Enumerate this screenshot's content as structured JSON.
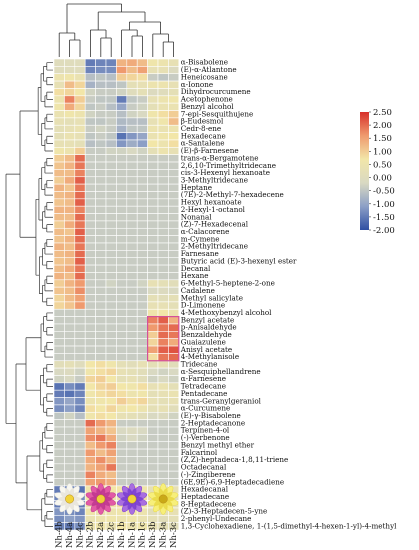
{
  "chart_data": {
    "type": "heatmap",
    "title": "",
    "columns": [
      "Nh-4b",
      "Nh-4a",
      "Nh-4c",
      "Nh-2b",
      "Nh-2a",
      "Nh-2c",
      "Nh-1b",
      "Nh-1a",
      "Nh-1c",
      "Nh-3b",
      "Nh-3a",
      "Nh-3c"
    ],
    "rows": [
      "α-Bisabolene",
      "(E)-α-Atlantone",
      "Heneicosane",
      "α-Ionone",
      "Dihydrocurcumene",
      "Acetophenone",
      "Benzyl alcohol",
      "7-epi-Sesquithujene",
      "β-Eudesmol",
      "Cedr-8-ene",
      "Hexadecane",
      "α-Santalene",
      "(E)-β-Farnesene",
      "trans-α-Bergamotene",
      "2,6,10-Trimethyltridecane",
      "cis-3-Hexenyl hexanoate",
      "3-Methyltridecane",
      "Heptane",
      "(7E)-2-Methyl-7-hexadecene",
      "Hexyl hexanoate",
      "2-Hexyl-1-octanol",
      "Nonanal",
      "(Z)-7-Hexadecenal",
      "α-Calacorene",
      "m-Cymene",
      "2-Methyltridecane",
      "Farnesane",
      "Butyric acid (E)-3-hexenyl ester",
      "Decanal",
      "Hexane",
      "6-Methyl-5-heptene-2-one",
      "Cadalene",
      "Methyl salicylate",
      "D-Limonene",
      "4-Methoxybenzyl alcohol",
      "Benzyl acetate",
      "p-Anisaldehyde",
      "Benzaldehyde",
      "Guaiazulene",
      "Anisyl acetate",
      "4-Methylanisole",
      "Tridecane",
      "α-Sesquiphellandrene",
      "α-Farnesene",
      "Tetradecane",
      "Pentadecane",
      "trans-Geranylgeraniol",
      "α-Curcumene",
      "(E)-γ-Bisabolene",
      "2-Heptadecanone",
      "Terpinen-4-ol",
      "(-)-Verbenone",
      "Benzyl methyl ether",
      "Falcarinol",
      "(Z,Z)-heptadeca-1,8,11-triene",
      "Octadecanal",
      "(-)-Zingiberene",
      "(6E,9E)-6,9-Heptadecadiene",
      "Hexadecanal",
      "Heptadecane",
      "8-Heptadecene",
      "(Z)-3-Heptadecen-5-yne",
      "2-phenyl-Undecane",
      "1,3-Cyclohexadiene, 1-(1,5-dimethyl-4-hexen-1-yl)-4-methyl"
    ],
    "values": [
      [
        0.0,
        0.0,
        0.0,
        -1.5,
        -1.4,
        -1.4,
        1.3,
        1.4,
        1.2,
        0.6,
        0.5,
        0.3
      ],
      [
        0.0,
        0.0,
        0.0,
        -1.4,
        -1.3,
        -1.3,
        1.6,
        1.2,
        1.5,
        0.3,
        0.3,
        -0.1
      ],
      [
        0.5,
        0.6,
        0.4,
        -0.6,
        -0.5,
        -0.6,
        1.0,
        0.9,
        0.8,
        -0.4,
        -0.5,
        -0.4
      ],
      [
        0.3,
        1.2,
        0.9,
        -0.8,
        -0.6,
        -0.6,
        -0.5,
        0.2,
        0.3,
        0.5,
        0.5,
        0.3
      ],
      [
        0.8,
        0.9,
        0.7,
        -0.3,
        -0.4,
        -0.4,
        -0.3,
        0.0,
        0.2,
        -0.1,
        0.0,
        0.2
      ],
      [
        0.5,
        1.8,
        1.0,
        -0.4,
        -0.5,
        -0.5,
        -1.5,
        -0.5,
        -0.4,
        0.3,
        0.5,
        0.6
      ],
      [
        0.6,
        1.4,
        0.9,
        -0.5,
        -0.4,
        -0.6,
        -1.0,
        -0.4,
        -0.3,
        0.2,
        0.4,
        0.4
      ],
      [
        0.4,
        0.6,
        0.5,
        -0.3,
        -0.4,
        -0.4,
        -0.6,
        -0.3,
        -0.2,
        0.6,
        0.8,
        1.0
      ],
      [
        0.3,
        0.2,
        0.3,
        -0.5,
        -0.5,
        -0.4,
        -0.7,
        -0.6,
        -0.6,
        0.3,
        0.6,
        1.2
      ],
      [
        0.2,
        0.3,
        0.4,
        -0.4,
        -0.3,
        -0.4,
        -0.8,
        -0.5,
        -0.5,
        0.5,
        0.4,
        0.5
      ],
      [
        0.2,
        0.4,
        0.3,
        -0.5,
        -0.4,
        -0.5,
        -1.6,
        -1.2,
        -1.0,
        0.4,
        0.6,
        0.7
      ],
      [
        0.3,
        0.3,
        0.2,
        -0.6,
        -0.5,
        -0.6,
        -1.2,
        -0.9,
        -1.1,
        0.7,
        0.5,
        0.8
      ],
      [
        0.6,
        0.5,
        1.0,
        -0.4,
        -0.4,
        -0.3,
        -0.3,
        -0.2,
        -0.3,
        0.2,
        0.5,
        0.3
      ],
      [
        1.0,
        1.2,
        2.0,
        -0.4,
        -0.4,
        -0.4,
        -0.4,
        -0.4,
        -0.4,
        -0.4,
        -0.4,
        -0.4
      ],
      [
        1.1,
        1.3,
        1.9,
        -0.4,
        -0.4,
        -0.4,
        -0.4,
        -0.4,
        -0.4,
        -0.4,
        -0.4,
        -0.4
      ],
      [
        1.2,
        1.2,
        1.8,
        -0.4,
        -0.4,
        -0.4,
        -0.4,
        -0.4,
        -0.4,
        -0.4,
        -0.4,
        -0.4
      ],
      [
        1.0,
        1.4,
        2.1,
        -0.4,
        -0.4,
        -0.4,
        -0.4,
        -0.4,
        -0.4,
        -0.4,
        -0.4,
        -0.4
      ],
      [
        1.3,
        1.1,
        1.9,
        -0.4,
        -0.4,
        -0.4,
        -0.4,
        -0.4,
        -0.4,
        -0.4,
        -0.4,
        -0.4
      ],
      [
        1.2,
        1.3,
        2.0,
        -0.4,
        -0.4,
        -0.4,
        -0.4,
        -0.4,
        -0.4,
        -0.4,
        -0.4,
        -0.4
      ],
      [
        1.1,
        1.2,
        2.1,
        -0.4,
        -0.4,
        -0.4,
        -0.4,
        -0.4,
        -0.4,
        -0.4,
        -0.4,
        -0.4
      ],
      [
        1.3,
        1.3,
        1.8,
        -0.4,
        -0.4,
        -0.4,
        -0.4,
        -0.4,
        -0.4,
        -0.4,
        -0.4,
        -0.4
      ],
      [
        1.2,
        1.2,
        2.0,
        -0.4,
        -0.4,
        -0.4,
        -0.4,
        -0.4,
        -0.4,
        -0.4,
        -0.4,
        -0.4
      ],
      [
        1.0,
        1.4,
        1.9,
        -0.4,
        -0.4,
        -0.4,
        -0.4,
        -0.4,
        -0.4,
        -0.4,
        -0.4,
        -0.4
      ],
      [
        1.2,
        1.1,
        2.1,
        -0.4,
        -0.4,
        -0.4,
        -0.4,
        -0.4,
        -0.4,
        -0.4,
        -0.4,
        -0.4
      ],
      [
        1.1,
        1.3,
        2.0,
        -0.4,
        -0.4,
        -0.4,
        -0.4,
        -0.4,
        -0.4,
        -0.4,
        -0.4,
        -0.4
      ],
      [
        1.3,
        1.2,
        1.9,
        -0.4,
        -0.4,
        -0.4,
        -0.4,
        -0.4,
        -0.4,
        -0.4,
        -0.4,
        -0.4
      ],
      [
        1.2,
        1.3,
        2.0,
        -0.4,
        -0.4,
        -0.4,
        -0.4,
        -0.4,
        -0.4,
        -0.4,
        -0.4,
        -0.4
      ],
      [
        1.1,
        1.2,
        2.1,
        -0.4,
        -0.4,
        -0.4,
        -0.4,
        -0.4,
        -0.4,
        -0.4,
        -0.4,
        -0.4
      ],
      [
        1.2,
        1.4,
        1.9,
        -0.4,
        -0.4,
        -0.4,
        -0.4,
        -0.4,
        -0.4,
        -0.4,
        -0.4,
        -0.4
      ],
      [
        1.3,
        1.2,
        2.0,
        -0.4,
        -0.4,
        -0.4,
        -0.4,
        -0.4,
        -0.4,
        -0.4,
        -0.4,
        -0.4
      ],
      [
        1.0,
        1.3,
        1.6,
        -0.4,
        -0.4,
        -0.3,
        -0.4,
        -0.4,
        -0.3,
        0.3,
        0.2,
        0.1
      ],
      [
        1.1,
        1.2,
        1.7,
        -0.4,
        -0.4,
        -0.4,
        -0.4,
        -0.4,
        -0.4,
        -0.2,
        -0.1,
        -0.2
      ],
      [
        0.9,
        1.2,
        1.5,
        -0.4,
        -0.4,
        -0.4,
        -0.4,
        -0.4,
        -0.4,
        0.2,
        0.1,
        0.2
      ],
      [
        0.9,
        1.1,
        1.6,
        -0.4,
        -0.4,
        -0.4,
        -0.4,
        -0.4,
        -0.4,
        0.3,
        0.3,
        0.2
      ],
      [
        -0.4,
        -0.4,
        -0.4,
        -0.4,
        -0.4,
        -0.4,
        -0.4,
        -0.4,
        -0.4,
        0.6,
        0.7,
        0.5
      ],
      [
        -0.4,
        -0.4,
        -0.4,
        -0.4,
        -0.4,
        -0.4,
        -0.4,
        -0.4,
        -0.4,
        1.8,
        2.1,
        1.3
      ],
      [
        -0.4,
        -0.4,
        -0.4,
        -0.4,
        -0.4,
        -0.4,
        -0.4,
        -0.4,
        -0.4,
        1.6,
        1.9,
        2.0
      ],
      [
        -0.4,
        -0.4,
        -0.4,
        -0.4,
        -0.4,
        -0.4,
        -0.4,
        -0.4,
        -0.4,
        1.0,
        2.0,
        1.9
      ],
      [
        -0.4,
        -0.4,
        -0.4,
        -0.4,
        -0.4,
        -0.4,
        -0.4,
        -0.4,
        -0.4,
        0.9,
        1.8,
        1.4
      ],
      [
        -0.4,
        -0.4,
        -0.4,
        -0.4,
        -0.4,
        -0.4,
        -0.4,
        -0.4,
        -0.4,
        1.5,
        2.1,
        2.2
      ],
      [
        -0.4,
        -0.4,
        -0.4,
        -0.4,
        -0.4,
        -0.4,
        -0.4,
        -0.4,
        -0.4,
        0.8,
        1.9,
        2.0
      ],
      [
        0.1,
        0.2,
        0.0,
        0.7,
        0.8,
        0.6,
        0.2,
        0.1,
        0.3,
        0.2,
        0.3,
        0.1
      ],
      [
        -0.2,
        -0.1,
        -0.3,
        0.6,
        0.8,
        0.9,
        0.3,
        0.2,
        0.1,
        -0.2,
        -0.3,
        -0.2
      ],
      [
        -0.3,
        -0.2,
        -0.4,
        0.9,
        1.0,
        0.7,
        0.2,
        0.3,
        0.1,
        -0.3,
        -0.2,
        -0.3
      ],
      [
        -1.6,
        -1.3,
        -1.5,
        0.7,
        0.9,
        1.0,
        0.7,
        0.6,
        0.8,
        0.3,
        0.4,
        0.2
      ],
      [
        -1.5,
        -1.6,
        -1.4,
        0.6,
        0.8,
        0.9,
        0.8,
        0.5,
        0.6,
        0.2,
        0.3,
        0.4
      ],
      [
        -1.2,
        -1.0,
        -1.3,
        0.5,
        0.6,
        0.7,
        1.0,
        0.8,
        0.9,
        0.3,
        0.2,
        0.3
      ],
      [
        -1.3,
        -1.1,
        -1.4,
        0.8,
        0.7,
        0.9,
        0.6,
        0.7,
        0.5,
        0.2,
        0.3,
        0.1
      ],
      [
        -0.5,
        -0.3,
        -0.6,
        0.6,
        0.8,
        0.7,
        0.3,
        0.2,
        0.1,
        -0.2,
        -0.1,
        -0.3
      ],
      [
        -0.4,
        -0.4,
        -0.4,
        2.0,
        1.6,
        1.3,
        -0.4,
        -0.4,
        -0.4,
        -0.4,
        -0.4,
        -0.4
      ],
      [
        -0.4,
        -0.4,
        -0.4,
        1.5,
        1.3,
        1.1,
        -0.2,
        -0.1,
        -0.2,
        -0.4,
        -0.4,
        -0.4
      ],
      [
        -0.4,
        -0.4,
        -0.4,
        1.7,
        1.9,
        1.4,
        -0.3,
        -0.2,
        -0.3,
        -0.4,
        -0.4,
        -0.4
      ],
      [
        -0.4,
        -0.4,
        -0.4,
        1.2,
        1.6,
        1.8,
        -0.4,
        -0.4,
        -0.4,
        -0.4,
        -0.4,
        -0.4
      ],
      [
        -0.4,
        -0.4,
        -0.4,
        1.6,
        1.2,
        1.5,
        -0.4,
        -0.4,
        -0.4,
        -0.4,
        -0.4,
        -0.4
      ],
      [
        -0.4,
        -0.4,
        -0.4,
        1.4,
        1.7,
        1.3,
        -0.4,
        -0.4,
        -0.4,
        -0.4,
        -0.4,
        -0.4
      ],
      [
        -0.4,
        -0.4,
        -0.4,
        1.3,
        1.5,
        1.9,
        -0.4,
        -0.4,
        -0.4,
        -0.4,
        -0.4,
        -0.4
      ],
      [
        -0.4,
        -0.4,
        -0.4,
        1.8,
        1.4,
        1.2,
        -0.4,
        -0.4,
        -0.4,
        -0.4,
        -0.4,
        -0.4
      ],
      [
        -0.4,
        -0.4,
        -0.4,
        1.5,
        1.6,
        1.4,
        -0.4,
        -0.4,
        -0.4,
        -0.4,
        -0.4,
        -0.4
      ],
      [
        -1.5,
        -1.3,
        -1.6,
        0.6,
        0.5,
        0.7,
        0.7,
        0.9,
        0.6,
        0.2,
        0.1,
        0.3
      ],
      [
        -1.4,
        -1.6,
        -1.3,
        0.7,
        0.8,
        0.5,
        0.5,
        0.6,
        0.8,
        0.3,
        0.2,
        0.1
      ],
      [
        -1.5,
        -1.4,
        -1.5,
        0.5,
        0.6,
        0.6,
        0.8,
        0.5,
        0.7,
        0.2,
        0.3,
        0.2
      ],
      [
        -1.2,
        -1.3,
        -1.4,
        0.6,
        0.4,
        0.5,
        0.6,
        0.7,
        0.5,
        0.1,
        0.2,
        0.3
      ],
      [
        -1.3,
        -1.1,
        -1.2,
        0.4,
        0.5,
        0.6,
        0.5,
        0.6,
        0.4,
        0.2,
        0.1,
        0.2
      ],
      [
        -1.4,
        -1.5,
        -1.3,
        0.5,
        0.6,
        0.4,
        0.7,
        0.5,
        0.6,
        0.3,
        0.2,
        0.1
      ]
    ],
    "color_scale": {
      "min": -2.0,
      "max": 2.5,
      "ticks": [
        "2.50",
        "2.00",
        "1.50",
        "1.00",
        "0.50",
        "0.00",
        "-0.50",
        "-1.00",
        "-1.50",
        "-2.00"
      ],
      "colors": [
        "#2f4fa3",
        "#8c9fc6",
        "#d9d9c2",
        "#f2e6a8",
        "#ef9a6e",
        "#d7302b"
      ]
    },
    "flowers": [
      {
        "group": "Nh-4",
        "colors": [
          "#f8f7f0",
          "#e8e4da",
          "#f2d43a"
        ]
      },
      {
        "group": "Nh-2",
        "colors": [
          "#e25aa6",
          "#c0378e",
          "#f1cf3a"
        ]
      },
      {
        "group": "Nh-1",
        "colors": [
          "#a96ee0",
          "#7b3fd0",
          "#f2d53b"
        ]
      },
      {
        "group": "Nh-3",
        "colors": [
          "#f7ef7a",
          "#e9d845",
          "#c9a917"
        ]
      }
    ],
    "highlight_box": {
      "rows": [
        "Benzyl acetate",
        "4-Methylanisole"
      ],
      "color": "#d4509a"
    },
    "grid": true,
    "legend": "right"
  }
}
